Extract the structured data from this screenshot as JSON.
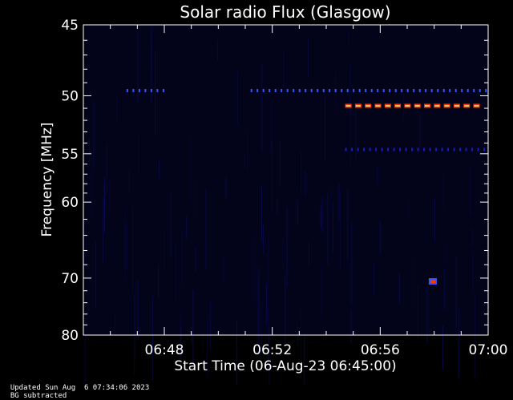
{
  "chart_data": {
    "type": "heatmap",
    "title": "Solar radio Flux (Glasgow)",
    "xlabel": "Start Time (06-Aug-23 06:45:00)",
    "ylabel": "Frequency [MHz]",
    "x_ticks": [
      "06:48",
      "06:52",
      "06:56",
      "07:00"
    ],
    "x_ticks_minutes": [
      48,
      52,
      56,
      60
    ],
    "xlim_minutes": [
      45,
      60
    ],
    "y_ticks": [
      "45",
      "50",
      "55",
      "60",
      "70",
      "80"
    ],
    "y_ticks_mhz": [
      45,
      50,
      55,
      60,
      70,
      80
    ],
    "ylim": [
      45,
      80
    ],
    "y_scale": "reciprocal",
    "grid": false,
    "colors": {
      "background": "#000000",
      "plot_bg": "#03031a",
      "weak": "#1a1acc",
      "medium": "#3355ff",
      "strong": "#ff3300",
      "peak": "#ffcc88"
    },
    "features": [
      {
        "label": "intermittent band",
        "freq_mhz": 49.6,
        "x_start_minutes": 46.6,
        "x_end_minutes": 48.2,
        "intensity": "medium"
      },
      {
        "label": "intermittent band",
        "freq_mhz": 49.6,
        "x_start_minutes": 51.2,
        "x_end_minutes": 60.0,
        "intensity": "medium"
      },
      {
        "label": "strong band",
        "freq_mhz": 50.8,
        "x_start_minutes": 54.7,
        "x_end_minutes": 60.0,
        "intensity": "strong"
      },
      {
        "label": "weak band",
        "freq_mhz": 54.6,
        "x_start_minutes": 54.7,
        "x_end_minutes": 60.0,
        "intensity": "weak"
      },
      {
        "label": "burst",
        "freq_mhz": 70.5,
        "x_start_minutes": 57.8,
        "x_end_minutes": 58.1,
        "intensity": "strong"
      }
    ]
  },
  "footer": {
    "updated": "Updated Sun Aug  6 07:34:06 2023",
    "note": "BG subtracted"
  }
}
